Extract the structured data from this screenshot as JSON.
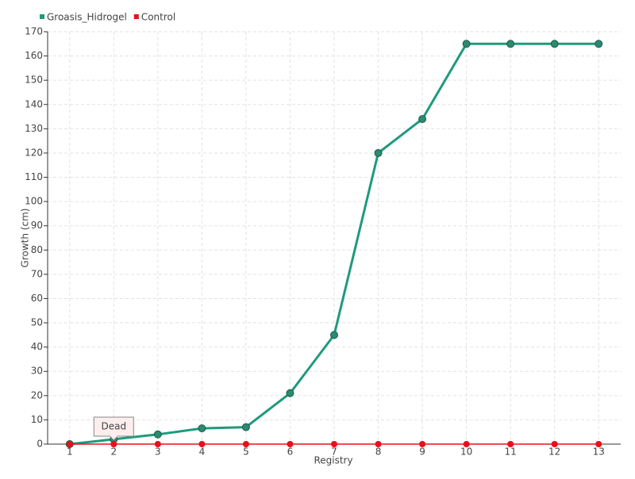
{
  "chart_data": {
    "type": "line",
    "x_label": "Registry",
    "y_label": "Growth (cm)",
    "categories": [
      "1",
      "2",
      "3",
      "4",
      "5",
      "6",
      "7",
      "8",
      "9",
      "10",
      "11",
      "12",
      "13"
    ],
    "series": [
      {
        "name": "Groasis_Hidrogel",
        "color": "#1f9a7c",
        "values": [
          0,
          2,
          4,
          6.5,
          7,
          21,
          45,
          120,
          134,
          165,
          165,
          165,
          165
        ]
      },
      {
        "name": "Control",
        "color": "#e8101a",
        "values": [
          0,
          0,
          0,
          0,
          0,
          0,
          0,
          0,
          0,
          0,
          0,
          0,
          0
        ]
      }
    ],
    "ylim": [
      0,
      170
    ],
    "yticks": [
      0,
      10,
      20,
      30,
      40,
      50,
      60,
      70,
      80,
      90,
      100,
      110,
      120,
      130,
      140,
      150,
      160,
      170
    ],
    "grid": true,
    "legend": "top-left",
    "annotations": [
      {
        "text": "Dead",
        "series": 1,
        "index": 1
      }
    ]
  }
}
